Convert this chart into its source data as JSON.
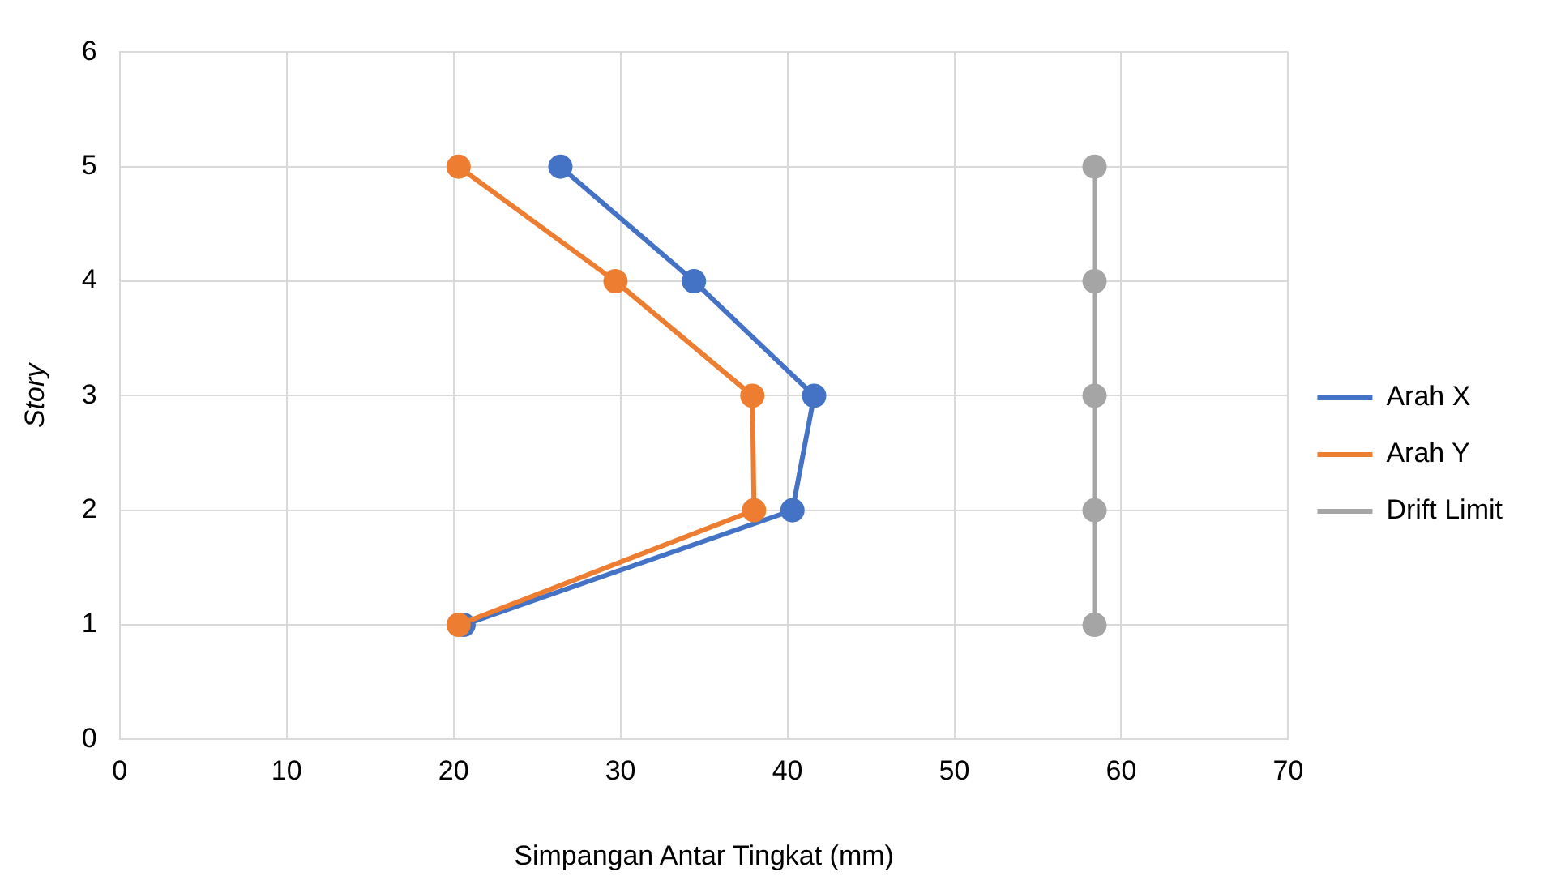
{
  "chart_data": {
    "type": "line",
    "xlabel": "Simpangan Antar Tingkat (mm)",
    "ylabel": "Story",
    "series": [
      {
        "name": "Arah X",
        "color": "#4472c4",
        "x": [
          20.6,
          40.3,
          41.6,
          34.4,
          26.4
        ],
        "values": [
          1,
          2,
          3,
          4,
          5
        ]
      },
      {
        "name": "Arah Y",
        "color": "#ed7d31",
        "x": [
          20.3,
          38.0,
          37.9,
          29.7,
          20.3
        ],
        "values": [
          1,
          2,
          3,
          4,
          5
        ]
      },
      {
        "name": "Drift Limit",
        "color": "#a5a5a5",
        "x": [
          58.4,
          58.4,
          58.4,
          58.4,
          58.4
        ],
        "values": [
          1,
          2,
          3,
          4,
          5
        ]
      }
    ],
    "xlim": [
      0,
      70
    ],
    "xticks": [
      0,
      10,
      20,
      30,
      40,
      50,
      60,
      70
    ],
    "ylim": [
      0,
      6
    ],
    "yticks": [
      0,
      1,
      2,
      3,
      4,
      5,
      6
    ],
    "grid": true,
    "legend": "right",
    "marker": "circle",
    "line_style": "solid"
  }
}
